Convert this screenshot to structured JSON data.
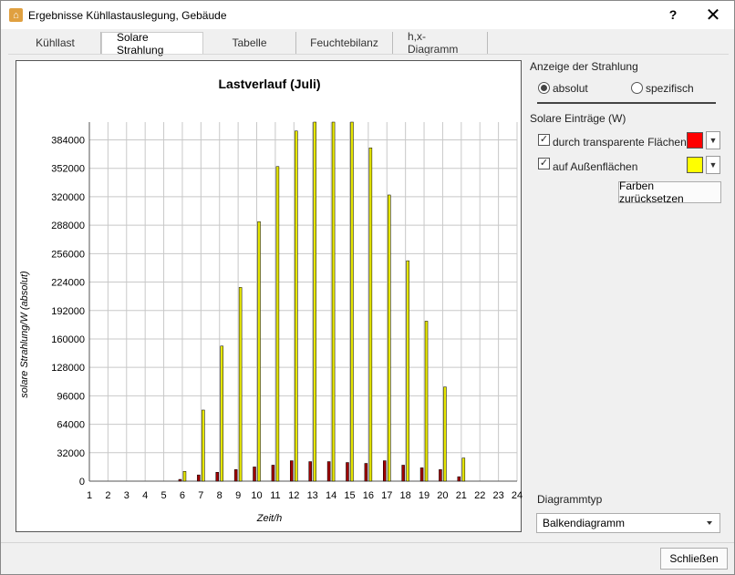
{
  "window": {
    "title": "Ergebnisse Kühllastauslegung, Gebäude",
    "help_label": "?",
    "close_label": "✕"
  },
  "tabs": [
    {
      "label": "Kühllast",
      "active": false
    },
    {
      "label": "Solare Strahlung",
      "active": true
    },
    {
      "label": "Tabelle",
      "active": false
    },
    {
      "label": "Feuchtebilanz",
      "active": false
    },
    {
      "label": "h,x-Diagramm",
      "active": false
    }
  ],
  "panel": {
    "display_heading": "Anzeige der Strahlung",
    "radio_absolute": "absolut",
    "radio_specific": "spezifisch",
    "gains_heading": "Solare Einträge (W)",
    "check_transparent": "durch transparente Flächen",
    "check_outer": "auf Außenflächen",
    "reset_colors": "Farben zurücksetzen",
    "diagram_type_heading": "Diagrammtyp",
    "diagram_type_value": "Balkendiagramm",
    "color_transparent": "#ff0000",
    "color_outer": "#ffff00"
  },
  "footer": {
    "close_button": "Schließen"
  },
  "chart_data": {
    "type": "bar",
    "title": "Lastverlauf (Juli)",
    "xlabel": "Zeit/h",
    "ylabel": "solare Strahlung/W (absolut)",
    "categories": [
      "1",
      "2",
      "3",
      "4",
      "5",
      "6",
      "7",
      "8",
      "9",
      "10",
      "11",
      "12",
      "13",
      "14",
      "15",
      "16",
      "17",
      "18",
      "19",
      "20",
      "21",
      "22",
      "23",
      "24"
    ],
    "ylim": [
      0,
      404000
    ],
    "yticks": [
      "0",
      "32000",
      "64000",
      "96000",
      "128000",
      "160000",
      "192000",
      "224000",
      "256000",
      "288000",
      "320000",
      "352000",
      "384000"
    ],
    "grid": true,
    "series": [
      {
        "color": "#a00000",
        "values": [
          0,
          0,
          0,
          0,
          0,
          2000,
          7000,
          10000,
          13000,
          16000,
          18000,
          23000,
          22000,
          22000,
          21000,
          20000,
          23000,
          18000,
          15000,
          13000,
          5000,
          0,
          0,
          0
        ]
      },
      {
        "color": "#e6e600",
        "values": [
          0,
          0,
          0,
          0,
          0,
          11000,
          80000,
          152000,
          218000,
          292000,
          354000,
          394000,
          408000,
          407000,
          406000,
          375000,
          322000,
          248000,
          180000,
          106000,
          26000,
          0,
          0,
          0
        ]
      }
    ]
  }
}
